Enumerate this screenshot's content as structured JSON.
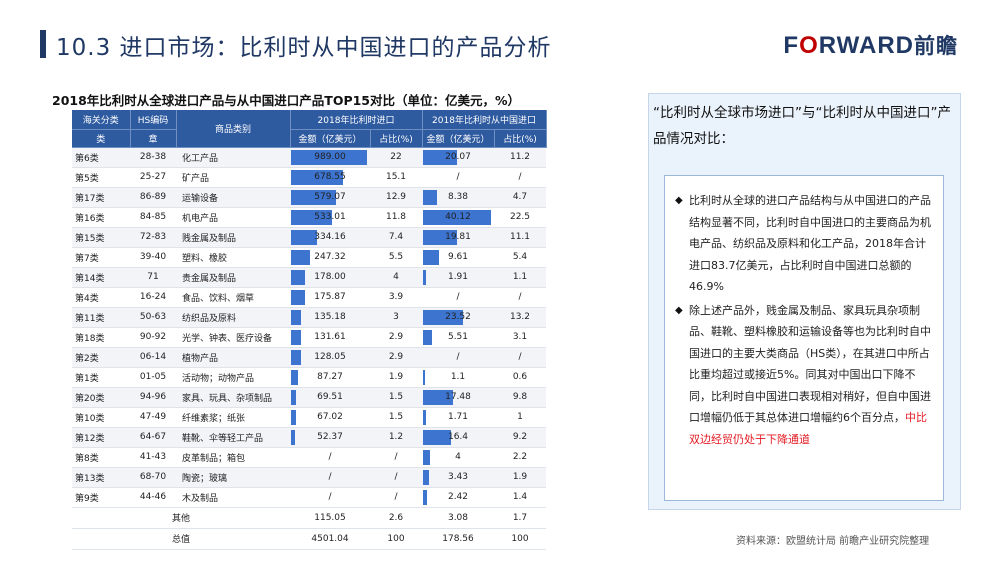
{
  "page_title": "10.3 进口市场：比利时从中国进口的产品分析",
  "logo": {
    "part1": "F",
    "o": "O",
    "part2": "RWARD",
    "cn": "前瞻"
  },
  "table": {
    "title": "2018年比利时从全球进口产品与从中国进口产品TOP15对比（单位：亿美元，%）",
    "header1": {
      "hs_class_top": "海关分类",
      "hs_code_top": "HS编码",
      "product": "商品类别",
      "global": "2018年比利时进口",
      "china": "2018年比利时从中国进口"
    },
    "header2": {
      "hs_class_bottom": "类",
      "hs_code_bottom": "章",
      "g_amount": "金额（亿美元）",
      "g_share": "占比(%)",
      "c_amount": "金额（亿美元）",
      "c_share": "占比(%)"
    },
    "rows": [
      {
        "cls": "第6类",
        "ch": "28-38",
        "name": "化工产品",
        "g_amt": "989.00",
        "g_share": "22",
        "c_amt": "20.07",
        "c_share": "11.2",
        "gv": 989.0,
        "cv": 20.07
      },
      {
        "cls": "第5类",
        "ch": "25-27",
        "name": "矿产品",
        "g_amt": "678.55",
        "g_share": "15.1",
        "c_amt": "/",
        "c_share": "/",
        "gv": 678.55,
        "cv": 0
      },
      {
        "cls": "第17类",
        "ch": "86-89",
        "name": "运输设备",
        "g_amt": "579.07",
        "g_share": "12.9",
        "c_amt": "8.38",
        "c_share": "4.7",
        "gv": 579.07,
        "cv": 8.38
      },
      {
        "cls": "第16类",
        "ch": "84-85",
        "name": "机电产品",
        "g_amt": "533.01",
        "g_share": "11.8",
        "c_amt": "40.12",
        "c_share": "22.5",
        "gv": 533.01,
        "cv": 40.12
      },
      {
        "cls": "第15类",
        "ch": "72-83",
        "name": "贱金属及制品",
        "g_amt": "334.16",
        "g_share": "7.4",
        "c_amt": "19.81",
        "c_share": "11.1",
        "gv": 334.16,
        "cv": 19.81
      },
      {
        "cls": "第7类",
        "ch": "39-40",
        "name": "塑料、橡胶",
        "g_amt": "247.32",
        "g_share": "5.5",
        "c_amt": "9.61",
        "c_share": "5.4",
        "gv": 247.32,
        "cv": 9.61
      },
      {
        "cls": "第14类",
        "ch": "71",
        "name": "贵金属及制品",
        "g_amt": "178.00",
        "g_share": "4",
        "c_amt": "1.91",
        "c_share": "1.1",
        "gv": 178.0,
        "cv": 1.91
      },
      {
        "cls": "第4类",
        "ch": "16-24",
        "name": "食品、饮料、烟草",
        "g_amt": "175.87",
        "g_share": "3.9",
        "c_amt": "/",
        "c_share": "/",
        "gv": 175.87,
        "cv": 0
      },
      {
        "cls": "第11类",
        "ch": "50-63",
        "name": "纺织品及原料",
        "g_amt": "135.18",
        "g_share": "3",
        "c_amt": "23.52",
        "c_share": "13.2",
        "gv": 135.18,
        "cv": 23.52
      },
      {
        "cls": "第18类",
        "ch": "90-92",
        "name": "光学、钟表、医疗设备",
        "g_amt": "131.61",
        "g_share": "2.9",
        "c_amt": "5.51",
        "c_share": "3.1",
        "gv": 131.61,
        "cv": 5.51
      },
      {
        "cls": "第2类",
        "ch": "06-14",
        "name": "植物产品",
        "g_amt": "128.05",
        "g_share": "2.9",
        "c_amt": "/",
        "c_share": "/",
        "gv": 128.05,
        "cv": 0
      },
      {
        "cls": "第1类",
        "ch": "01-05",
        "name": "活动物；动物产品",
        "g_amt": "87.27",
        "g_share": "1.9",
        "c_amt": "1.1",
        "c_share": "0.6",
        "gv": 87.27,
        "cv": 1.1
      },
      {
        "cls": "第20类",
        "ch": "94-96",
        "name": "家具、玩具、杂项制品",
        "g_amt": "69.51",
        "g_share": "1.5",
        "c_amt": "17.48",
        "c_share": "9.8",
        "gv": 69.51,
        "cv": 17.48
      },
      {
        "cls": "第10类",
        "ch": "47-49",
        "name": "纤维素浆；纸张",
        "g_amt": "67.02",
        "g_share": "1.5",
        "c_amt": "1.71",
        "c_share": "1",
        "gv": 67.02,
        "cv": 1.71
      },
      {
        "cls": "第12类",
        "ch": "64-67",
        "name": "鞋靴、伞等轻工产品",
        "g_amt": "52.37",
        "g_share": "1.2",
        "c_amt": "16.4",
        "c_share": "9.2",
        "gv": 52.37,
        "cv": 16.4
      },
      {
        "cls": "第8类",
        "ch": "41-43",
        "name": "皮革制品；箱包",
        "g_amt": "/",
        "g_share": "/",
        "c_amt": "4",
        "c_share": "2.2",
        "gv": 0,
        "cv": 4
      },
      {
        "cls": "第13类",
        "ch": "68-70",
        "name": "陶瓷；玻璃",
        "g_amt": "/",
        "g_share": "/",
        "c_amt": "3.43",
        "c_share": "1.9",
        "gv": 0,
        "cv": 3.43
      },
      {
        "cls": "第9类",
        "ch": "44-46",
        "name": "木及制品",
        "g_amt": "/",
        "g_share": "/",
        "c_amt": "2.42",
        "c_share": "1.4",
        "gv": 0,
        "cv": 2.42
      }
    ],
    "bar_max": {
      "global": 989.0,
      "china": 40.12
    },
    "other": {
      "label": "其他",
      "g_amt": "115.05",
      "g_share": "2.6",
      "c_amt": "3.08",
      "c_share": "1.7"
    },
    "total": {
      "label": "总值",
      "g_amt": "4501.04",
      "g_share": "100",
      "c_amt": "178.56",
      "c_share": "100"
    }
  },
  "panel": {
    "heading": "“比利时从全球市场进口”与“比利时从中国进口”产品情况对比：",
    "bullet1": "比利时从全球的进口产品结构与从中国进口的产品结构显著不同，比利时自中国进口的主要商品为机电产品、纺织品及原料和化工产品，2018年合计进口83.7亿美元，占比利时自中国进口总额的46.9%",
    "bullet2_main": "除上述产品外，贱金属及制品、家具玩具杂项制品、鞋靴、塑料橡胶和运输设备等也为比利时自中国进口的主要大类商品（HS类），在其进口中所占比重均超过或接近5%。同其对中国出口下降不同，比利时自中国进口表现相对稍好，但自中国进口增幅仍低于其总体进口增幅约6个百分点，",
    "bullet2_red": "中比双边经贸仍处于下降通道",
    "diamond": "◆"
  },
  "source": "资料来源：欧盟统计局  前瞻产业研究院整理",
  "colors": {
    "header_bg": "#2e5aa0",
    "bar": "#3c74d0",
    "title": "#1f3864",
    "highlight": "#e31b23"
  }
}
